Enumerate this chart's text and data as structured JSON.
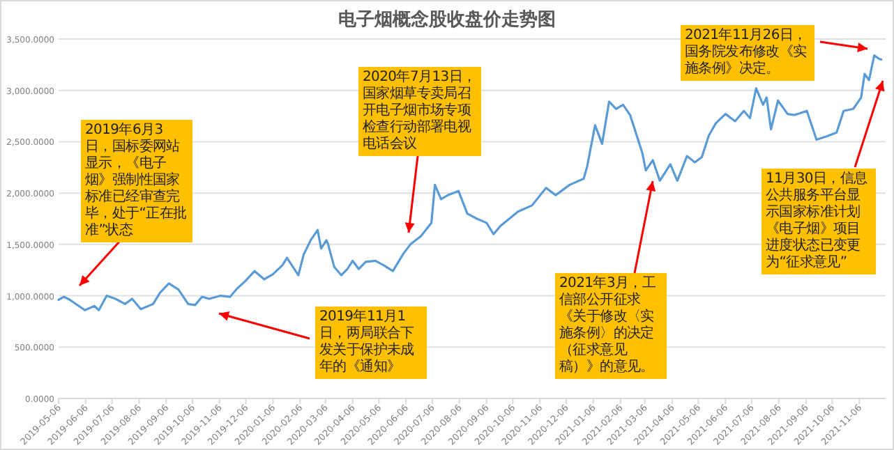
{
  "chart_data": {
    "type": "line",
    "title": "电子烟概念股收盘价走势图",
    "x": [
      "2019-05-06",
      "2019-05-12",
      "2019-05-19",
      "2019-06-05",
      "2019-06-16",
      "2019-06-21",
      "2019-06-30",
      "2019-07-10",
      "2019-07-21",
      "2019-07-29",
      "2019-08-08",
      "2019-08-22",
      "2019-08-30",
      "2019-09-09",
      "2019-09-20",
      "2019-10-01",
      "2019-10-09",
      "2019-10-17",
      "2019-10-25",
      "2019-11-07",
      "2019-11-18",
      "2019-11-26",
      "2019-12-05",
      "2019-12-16",
      "2019-12-27",
      "2020-01-06",
      "2020-01-17",
      "2020-01-22",
      "2020-02-04",
      "2020-02-10",
      "2020-02-18",
      "2020-02-26",
      "2020-03-01",
      "2020-03-07",
      "2020-03-09",
      "2020-03-16",
      "2020-03-24",
      "2020-03-31",
      "2020-04-06",
      "2020-04-13",
      "2020-04-21",
      "2020-05-02",
      "2020-05-11",
      "2020-05-22",
      "2020-06-03",
      "2020-06-11",
      "2020-06-23",
      "2020-07-05",
      "2020-07-09",
      "2020-07-16",
      "2020-07-24",
      "2020-08-05",
      "2020-08-15",
      "2020-08-26",
      "2020-09-06",
      "2020-09-14",
      "2020-09-22",
      "2020-10-12",
      "2020-10-28",
      "2020-11-13",
      "2020-11-24",
      "2020-12-10",
      "2020-12-26",
      "2020-12-30",
      "2021-01-08",
      "2021-01-16",
      "2021-01-24",
      "2021-02-01",
      "2021-02-09",
      "2021-02-17",
      "2021-02-25",
      "2021-03-03",
      "2021-03-07",
      "2021-03-15",
      "2021-03-23",
      "2021-04-04",
      "2021-04-12",
      "2021-04-23",
      "2021-05-02",
      "2021-05-10",
      "2021-05-18",
      "2021-05-26",
      "2021-06-06",
      "2021-06-17",
      "2021-06-27",
      "2021-07-04",
      "2021-07-11",
      "2021-07-19",
      "2021-07-23",
      "2021-07-28",
      "2021-08-05",
      "2021-08-16",
      "2021-08-24",
      "2021-09-07",
      "2021-09-18",
      "2021-09-29",
      "2021-10-11",
      "2021-10-19",
      "2021-10-30",
      "2021-11-08",
      "2021-11-12",
      "2021-11-17",
      "2021-11-23",
      "2021-11-28",
      "2021-12-01"
    ],
    "values": [
      960,
      990,
      960,
      860,
      900,
      860,
      1000,
      970,
      920,
      970,
      870,
      920,
      1030,
      1120,
      1060,
      920,
      910,
      990,
      970,
      1000,
      990,
      1070,
      1140,
      1240,
      1160,
      1210,
      1300,
      1370,
      1200,
      1400,
      1540,
      1640,
      1460,
      1540,
      1500,
      1280,
      1200,
      1260,
      1340,
      1260,
      1330,
      1340,
      1300,
      1240,
      1410,
      1500,
      1580,
      1710,
      2080,
      1940,
      1980,
      2020,
      1800,
      1750,
      1710,
      1600,
      1680,
      1820,
      1880,
      2050,
      1980,
      2080,
      2140,
      2260,
      2660,
      2480,
      2890,
      2820,
      2860,
      2760,
      2550,
      2390,
      2220,
      2320,
      2120,
      2280,
      2120,
      2360,
      2300,
      2350,
      2560,
      2680,
      2770,
      2700,
      2800,
      2730,
      3020,
      2860,
      2930,
      2620,
      2900,
      2770,
      2760,
      2800,
      2520,
      2550,
      2590,
      2800,
      2820,
      2930,
      3160,
      3100,
      3340,
      3310,
      3300
    ],
    "color": "#5b9bd5",
    "xlim": [
      "2019-05-06",
      "2021-12-06"
    ],
    "xticks": [
      "2019-05-06",
      "2019-06-06",
      "2019-07-06",
      "2019-08-06",
      "2019-09-06",
      "2019-10-06",
      "2019-11-06",
      "2019-12-06",
      "2020-01-06",
      "2020-02-06",
      "2020-03-06",
      "2020-04-06",
      "2020-05-06",
      "2020-06-06",
      "2020-07-06",
      "2020-08-06",
      "2020-09-06",
      "2020-10-06",
      "2020-11-06",
      "2020-12-06",
      "2021-01-06",
      "2021-02-06",
      "2021-03-06",
      "2021-04-06",
      "2021-05-06",
      "2021-06-06",
      "2021-07-06",
      "2021-08-06",
      "2021-09-06",
      "2021-10-06",
      "2021-11-06"
    ],
    "ylim": [
      0,
      3500
    ],
    "yticks": [
      {
        "value": 0,
        "label": "0.0000"
      },
      {
        "value": 500,
        "label": "500.0000"
      },
      {
        "value": 1000,
        "label": "1,000.0000"
      },
      {
        "value": 1500,
        "label": "1,500.0000"
      },
      {
        "value": 2000,
        "label": "2,000.0000"
      },
      {
        "value": 2500,
        "label": "2,500.0000"
      },
      {
        "value": 3000,
        "label": "3,000.0000"
      },
      {
        "value": 3500,
        "label": "3,500.0000"
      }
    ],
    "grid": "y",
    "annotations": [
      "2019年6月3日，国标委网站显示，《电子烟》强制性国家标准已经审查完毕，处于“正在批准”状态",
      "2019年11月1日，两局联合下发关于保护未成年的《通知》",
      "2020年7月13日，国家烟草专卖局召开电子烟市场专项检查行动部署电视电话会议",
      "2021年3月，工信部公开征求《关于修改〈实施条例〉的决定（征求意见稿）》的意见。",
      "2021年11月26日，国务院发布修改《实施条例》决定。",
      "11月30日，信息公共服务平台显示国家标准计划《电子烟》项目进度状态已变更为“征求意见”"
    ]
  }
}
